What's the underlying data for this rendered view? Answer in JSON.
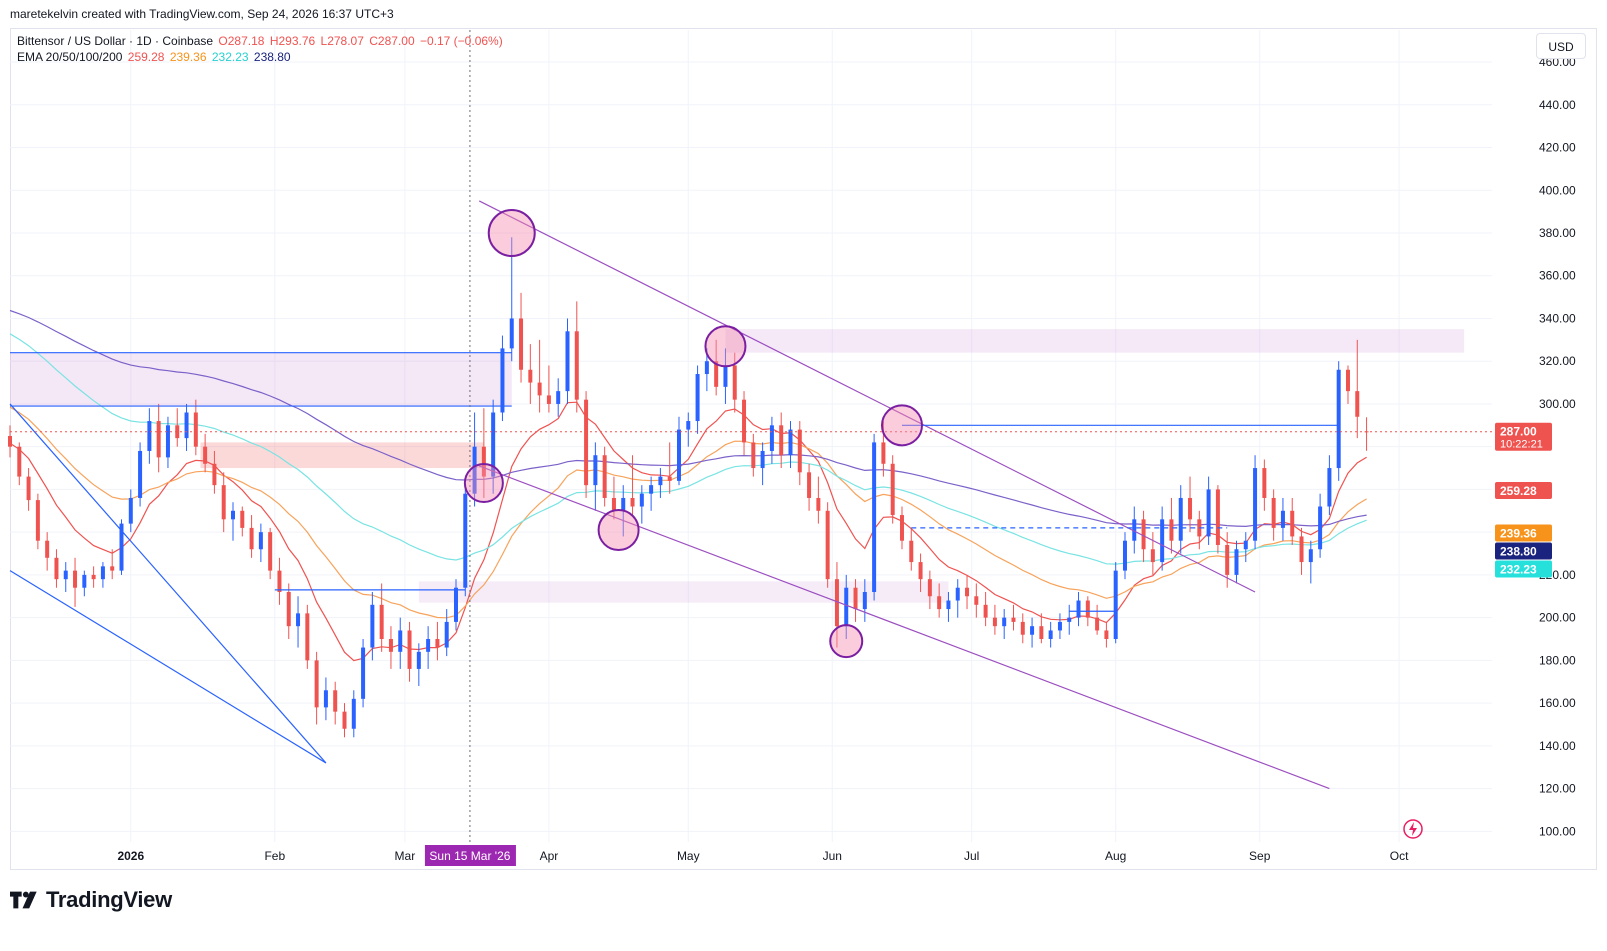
{
  "header": {
    "created_by": "maretekelvin created with TradingView.com, Sep 24, 2026 16:37 UTC+3"
  },
  "legend": {
    "symbol": "Bittensor / US Dollar · 1D · Coinbase",
    "open": "O287.18",
    "high": "H293.76",
    "low": "L278.07",
    "close": "C287.00",
    "change": "−0.17 (−0.06%)",
    "ema_label": "EMA 20/50/100/200",
    "ema20": "259.28",
    "ema50": "239.36",
    "ema100": "232.23",
    "ema200": "238.80"
  },
  "currency_button": "USD",
  "brand": {
    "name": "TradingView",
    "icon": "tradingview-logo-icon"
  },
  "colors": {
    "up": "#2962ff",
    "down": "#ef5350",
    "ema20": "#ef5350",
    "ema50": "#f7a35c",
    "ema100": "#7ae3e3",
    "ema200": "#7b61c9",
    "trendline": "#9c4fc0",
    "price_line": "#ef5350"
  },
  "chart_data": {
    "type": "candlestick",
    "title": "Bittensor / US Dollar · 1D · Coinbase",
    "y_axis": {
      "ticks": [
        100,
        120,
        140,
        160,
        180,
        200,
        220,
        240,
        260,
        280,
        300,
        320,
        340,
        360,
        380,
        400,
        420,
        440,
        460
      ],
      "tick_labels": [
        "100.00",
        "120.00",
        "140.00",
        "160.00",
        "180.00",
        "200.00",
        "220.00",
        "",
        "",
        "",
        "300.00",
        "320.00",
        "340.00",
        "360.00",
        "380.00",
        "400.00",
        "420.00",
        "440.00",
        "460.00"
      ],
      "range": [
        95,
        475
      ]
    },
    "x_axis": {
      "range": [
        "2025-12-06",
        "2026-10-21"
      ],
      "labels": [
        {
          "date": "2026-01-01",
          "label": "2026",
          "bold": true
        },
        {
          "date": "2026-02-01",
          "label": "Feb"
        },
        {
          "date": "2026-03-01",
          "label": "Mar"
        },
        {
          "date": "2026-04-01",
          "label": "Apr"
        },
        {
          "date": "2026-05-01",
          "label": "May"
        },
        {
          "date": "2026-06-01",
          "label": "Jun"
        },
        {
          "date": "2026-07-01",
          "label": "Jul"
        },
        {
          "date": "2026-08-01",
          "label": "Aug"
        },
        {
          "date": "2026-09-01",
          "label": "Sep"
        },
        {
          "date": "2026-10-01",
          "label": "Oct"
        }
      ],
      "crosshair": {
        "date": "2026-03-15",
        "label": "Sun 15 Mar '26"
      }
    },
    "candles": [
      [
        "2025-12-06",
        285,
        290,
        275,
        280
      ],
      [
        "2025-12-08",
        280,
        282,
        262,
        266
      ],
      [
        "2025-12-10",
        266,
        270,
        250,
        255
      ],
      [
        "2025-12-12",
        255,
        258,
        232,
        236
      ],
      [
        "2025-12-14",
        236,
        240,
        222,
        228
      ],
      [
        "2025-12-16",
        228,
        232,
        214,
        218
      ],
      [
        "2025-12-18",
        218,
        226,
        212,
        222
      ],
      [
        "2025-12-20",
        222,
        228,
        205,
        214
      ],
      [
        "2025-12-22",
        214,
        222,
        210,
        220
      ],
      [
        "2025-12-24",
        220,
        224,
        214,
        218
      ],
      [
        "2025-12-26",
        218,
        226,
        214,
        224
      ],
      [
        "2025-12-28",
        224,
        232,
        218,
        222
      ],
      [
        "2025-12-30",
        222,
        246,
        220,
        244
      ],
      [
        "2026-01-01",
        244,
        260,
        240,
        256
      ],
      [
        "2026-01-03",
        256,
        282,
        252,
        278
      ],
      [
        "2026-01-05",
        278,
        298,
        272,
        292
      ],
      [
        "2026-01-07",
        292,
        300,
        268,
        275
      ],
      [
        "2026-01-09",
        275,
        294,
        270,
        290
      ],
      [
        "2026-01-11",
        290,
        298,
        280,
        284
      ],
      [
        "2026-01-13",
        284,
        300,
        278,
        296
      ],
      [
        "2026-01-15",
        296,
        302,
        276,
        280
      ],
      [
        "2026-01-17",
        280,
        286,
        268,
        272
      ],
      [
        "2026-01-19",
        272,
        278,
        258,
        262
      ],
      [
        "2026-01-21",
        262,
        268,
        240,
        246
      ],
      [
        "2026-01-23",
        246,
        254,
        236,
        250
      ],
      [
        "2026-01-25",
        250,
        252,
        238,
        242
      ],
      [
        "2026-01-27",
        242,
        248,
        228,
        232
      ],
      [
        "2026-01-29",
        232,
        244,
        226,
        240
      ],
      [
        "2026-01-31",
        240,
        242,
        218,
        222
      ],
      [
        "2026-02-02",
        222,
        228,
        206,
        212
      ],
      [
        "2026-02-04",
        212,
        216,
        190,
        196
      ],
      [
        "2026-02-06",
        196,
        210,
        186,
        202
      ],
      [
        "2026-02-08",
        202,
        206,
        176,
        180
      ],
      [
        "2026-02-10",
        180,
        184,
        150,
        158
      ],
      [
        "2026-02-12",
        158,
        172,
        152,
        166
      ],
      [
        "2026-02-14",
        166,
        170,
        150,
        156
      ],
      [
        "2026-02-16",
        156,
        160,
        144,
        148
      ],
      [
        "2026-02-18",
        148,
        166,
        144,
        162
      ],
      [
        "2026-02-20",
        162,
        190,
        158,
        186
      ],
      [
        "2026-02-22",
        186,
        212,
        180,
        206
      ],
      [
        "2026-02-24",
        206,
        216,
        184,
        190
      ],
      [
        "2026-02-26",
        190,
        196,
        176,
        184
      ],
      [
        "2026-02-28",
        184,
        200,
        176,
        194
      ],
      [
        "2026-03-02",
        194,
        198,
        170,
        176
      ],
      [
        "2026-03-04",
        176,
        188,
        168,
        184
      ],
      [
        "2026-03-06",
        184,
        196,
        176,
        190
      ],
      [
        "2026-03-08",
        190,
        198,
        180,
        186
      ],
      [
        "2026-03-10",
        186,
        204,
        182,
        198
      ],
      [
        "2026-03-12",
        198,
        218,
        194,
        214
      ],
      [
        "2026-03-14",
        214,
        262,
        210,
        258
      ],
      [
        "2026-03-16",
        258,
        296,
        252,
        280
      ],
      [
        "2026-03-18",
        280,
        298,
        256,
        266
      ],
      [
        "2026-03-20",
        266,
        302,
        258,
        296
      ],
      [
        "2026-03-22",
        296,
        332,
        292,
        326
      ],
      [
        "2026-03-24",
        326,
        378,
        320,
        340
      ],
      [
        "2026-03-26",
        340,
        352,
        310,
        316
      ],
      [
        "2026-03-28",
        316,
        328,
        300,
        310
      ],
      [
        "2026-03-30",
        310,
        330,
        296,
        304
      ],
      [
        "2026-04-01",
        304,
        318,
        296,
        300
      ],
      [
        "2026-04-03",
        300,
        312,
        294,
        306
      ],
      [
        "2026-04-05",
        306,
        340,
        300,
        334
      ],
      [
        "2026-04-07",
        334,
        348,
        296,
        302
      ],
      [
        "2026-04-09",
        302,
        306,
        256,
        262
      ],
      [
        "2026-04-11",
        262,
        282,
        250,
        276
      ],
      [
        "2026-04-13",
        276,
        280,
        252,
        256
      ],
      [
        "2026-04-15",
        256,
        266,
        246,
        250
      ],
      [
        "2026-04-17",
        250,
        262,
        238,
        256
      ],
      [
        "2026-04-19",
        256,
        276,
        248,
        252
      ],
      [
        "2026-04-21",
        252,
        262,
        244,
        258
      ],
      [
        "2026-04-23",
        258,
        266,
        250,
        262
      ],
      [
        "2026-04-25",
        262,
        270,
        256,
        266
      ],
      [
        "2026-04-27",
        266,
        282,
        258,
        264
      ],
      [
        "2026-04-29",
        264,
        294,
        262,
        288
      ],
      [
        "2026-05-01",
        288,
        296,
        280,
        292
      ],
      [
        "2026-05-03",
        292,
        318,
        286,
        314
      ],
      [
        "2026-05-05",
        314,
        326,
        306,
        320
      ],
      [
        "2026-05-07",
        320,
        330,
        304,
        308
      ],
      [
        "2026-05-09",
        308,
        326,
        300,
        318
      ],
      [
        "2026-05-11",
        318,
        324,
        296,
        302
      ],
      [
        "2026-05-13",
        302,
        306,
        276,
        282
      ],
      [
        "2026-05-15",
        282,
        286,
        266,
        270
      ],
      [
        "2026-05-17",
        270,
        282,
        262,
        278
      ],
      [
        "2026-05-19",
        278,
        294,
        272,
        290
      ],
      [
        "2026-05-21",
        290,
        296,
        270,
        276
      ],
      [
        "2026-05-23",
        276,
        292,
        270,
        288
      ],
      [
        "2026-05-25",
        288,
        292,
        262,
        268
      ],
      [
        "2026-05-27",
        268,
        272,
        250,
        256
      ],
      [
        "2026-05-29",
        256,
        266,
        244,
        250
      ],
      [
        "2026-05-31",
        250,
        254,
        214,
        218
      ],
      [
        "2026-06-02",
        218,
        226,
        186,
        196
      ],
      [
        "2026-06-04",
        196,
        220,
        190,
        214
      ],
      [
        "2026-06-06",
        214,
        218,
        198,
        204
      ],
      [
        "2026-06-08",
        204,
        218,
        198,
        212
      ],
      [
        "2026-06-10",
        212,
        286,
        208,
        282
      ],
      [
        "2026-06-12",
        282,
        292,
        266,
        272
      ],
      [
        "2026-06-14",
        272,
        276,
        244,
        248
      ],
      [
        "2026-06-16",
        248,
        252,
        232,
        236
      ],
      [
        "2026-06-18",
        236,
        242,
        222,
        226
      ],
      [
        "2026-06-20",
        226,
        230,
        212,
        218
      ],
      [
        "2026-06-22",
        218,
        222,
        204,
        210
      ],
      [
        "2026-06-24",
        210,
        216,
        200,
        204
      ],
      [
        "2026-06-26",
        204,
        212,
        198,
        208
      ],
      [
        "2026-06-28",
        208,
        218,
        200,
        214
      ],
      [
        "2026-06-30",
        214,
        220,
        204,
        210
      ],
      [
        "2026-07-02",
        210,
        216,
        200,
        206
      ],
      [
        "2026-07-04",
        206,
        212,
        196,
        200
      ],
      [
        "2026-07-06",
        200,
        206,
        192,
        196
      ],
      [
        "2026-07-08",
        196,
        204,
        190,
        200
      ],
      [
        "2026-07-10",
        200,
        206,
        194,
        198
      ],
      [
        "2026-07-12",
        198,
        202,
        188,
        192
      ],
      [
        "2026-07-14",
        192,
        200,
        186,
        196
      ],
      [
        "2026-07-16",
        196,
        202,
        188,
        190
      ],
      [
        "2026-07-18",
        190,
        198,
        186,
        194
      ],
      [
        "2026-07-20",
        194,
        202,
        190,
        198
      ],
      [
        "2026-07-22",
        198,
        206,
        192,
        200
      ],
      [
        "2026-07-24",
        200,
        212,
        196,
        208
      ],
      [
        "2026-07-26",
        208,
        210,
        196,
        200
      ],
      [
        "2026-07-28",
        200,
        206,
        192,
        194
      ],
      [
        "2026-07-30",
        194,
        198,
        186,
        190
      ],
      [
        "2026-08-01",
        190,
        226,
        188,
        222
      ],
      [
        "2026-08-03",
        222,
        240,
        218,
        236
      ],
      [
        "2026-08-05",
        236,
        252,
        230,
        246
      ],
      [
        "2026-08-07",
        246,
        250,
        226,
        232
      ],
      [
        "2026-08-09",
        232,
        240,
        220,
        226
      ],
      [
        "2026-08-11",
        226,
        252,
        222,
        246
      ],
      [
        "2026-08-13",
        246,
        256,
        230,
        236
      ],
      [
        "2026-08-15",
        236,
        262,
        230,
        256
      ],
      [
        "2026-08-17",
        256,
        266,
        240,
        246
      ],
      [
        "2026-08-19",
        246,
        250,
        232,
        238
      ],
      [
        "2026-08-21",
        238,
        266,
        234,
        260
      ],
      [
        "2026-08-23",
        260,
        262,
        230,
        234
      ],
      [
        "2026-08-25",
        234,
        240,
        214,
        220
      ],
      [
        "2026-08-27",
        220,
        236,
        216,
        232
      ],
      [
        "2026-08-29",
        232,
        240,
        226,
        236
      ],
      [
        "2026-08-31",
        236,
        276,
        232,
        270
      ],
      [
        "2026-09-02",
        270,
        274,
        250,
        256
      ],
      [
        "2026-09-04",
        256,
        260,
        236,
        242
      ],
      [
        "2026-09-06",
        242,
        256,
        236,
        250
      ],
      [
        "2026-09-08",
        250,
        256,
        234,
        238
      ],
      [
        "2026-09-10",
        238,
        242,
        220,
        226
      ],
      [
        "2026-09-12",
        226,
        236,
        216,
        232
      ],
      [
        "2026-09-14",
        232,
        258,
        228,
        252
      ],
      [
        "2026-09-16",
        252,
        276,
        248,
        270
      ],
      [
        "2026-09-18",
        270,
        320,
        264,
        316
      ],
      [
        "2026-09-20",
        316,
        318,
        300,
        306
      ],
      [
        "2026-09-22",
        306,
        330,
        284,
        294
      ],
      [
        "2026-09-24",
        287.18,
        293.76,
        278.07,
        287.0
      ]
    ],
    "ema": [
      {
        "name": "EMA 20",
        "value": 259.28
      },
      {
        "name": "EMA 50",
        "value": 239.36
      },
      {
        "name": "EMA 100",
        "value": 232.23
      },
      {
        "name": "EMA 200",
        "value": 238.8
      }
    ],
    "price_labels": [
      {
        "label": "287.00",
        "sub": "10:22:21",
        "value": 287.0,
        "color": "#ef5350"
      },
      {
        "label": "259.28",
        "value": 259.28,
        "color": "#ef5350"
      },
      {
        "label": "239.36",
        "value": 239.36,
        "color": "#f7931a"
      },
      {
        "label": "238.80",
        "value": 238.8,
        "color": "#1a237e"
      },
      {
        "label": "232.23",
        "value": 232.23,
        "color": "#26e0dc"
      }
    ]
  }
}
